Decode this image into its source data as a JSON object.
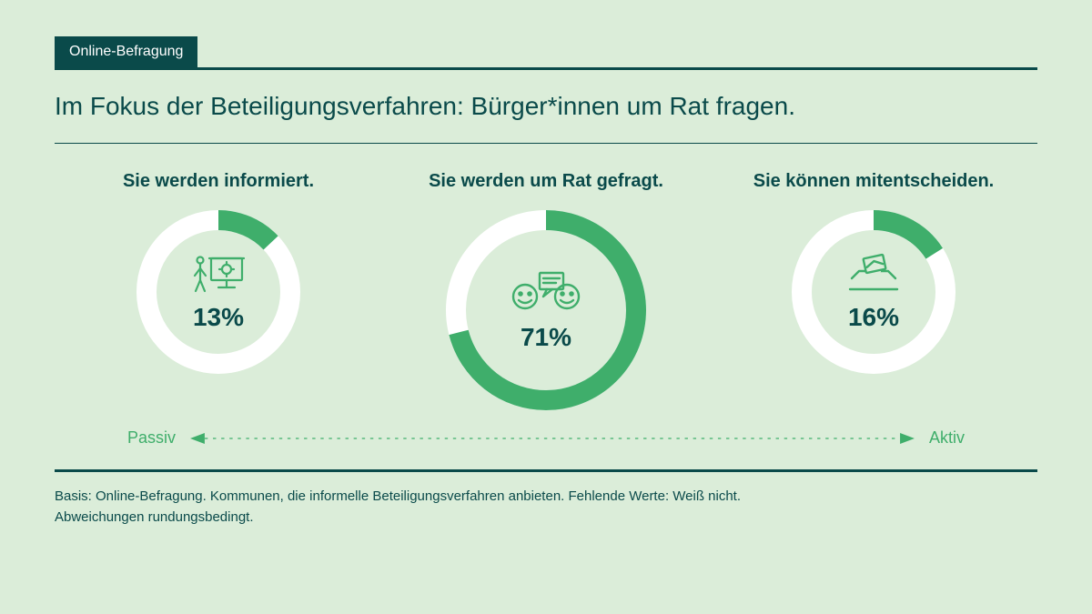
{
  "colors": {
    "bg": "#dbedd9",
    "dark": "#0a4a4a",
    "green": "#3fae6b",
    "track": "#ffffff"
  },
  "tag": "Online-Befragung",
  "title": "Im Fokus der Beteiligungsverfahren: Bürger*innen um Rat fragen.",
  "charts": {
    "ring_width": 22,
    "start_angle_deg": 0,
    "items": [
      {
        "label": "Sie werden informiert.",
        "value": 13,
        "display": "13%",
        "size": 180,
        "icon": "presentation"
      },
      {
        "label": "Sie werden um Rat gefragt.",
        "value": 71,
        "display": "71%",
        "size": 220,
        "icon": "discussion"
      },
      {
        "label": "Sie können mitentscheiden.",
        "value": 16,
        "display": "16%",
        "size": 180,
        "icon": "ballot"
      }
    ]
  },
  "axis": {
    "left": "Passiv",
    "right": "Aktiv"
  },
  "footer": {
    "line1": "Basis: Online-Befragung. Kommunen, die informelle Beteiligungsverfahren anbieten. Fehlende Werte: Weiß nicht.",
    "line2": "Abweichungen rundungsbedingt."
  }
}
